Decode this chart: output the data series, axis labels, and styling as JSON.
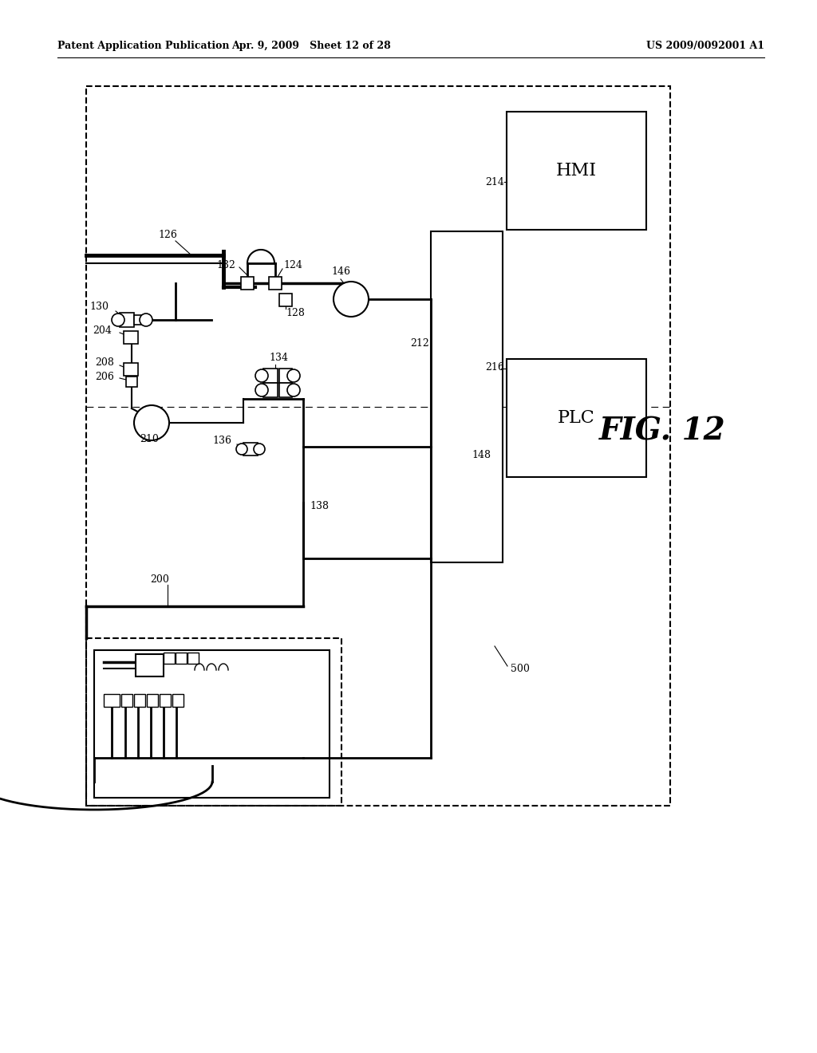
{
  "bg_color": "#ffffff",
  "header_left": "Patent Application Publication",
  "header_center": "Apr. 9, 2009   Sheet 12 of 28",
  "header_right": "US 2009/0092001 A1",
  "fig_label": "FIG. 12",
  "text_color": "#000000"
}
